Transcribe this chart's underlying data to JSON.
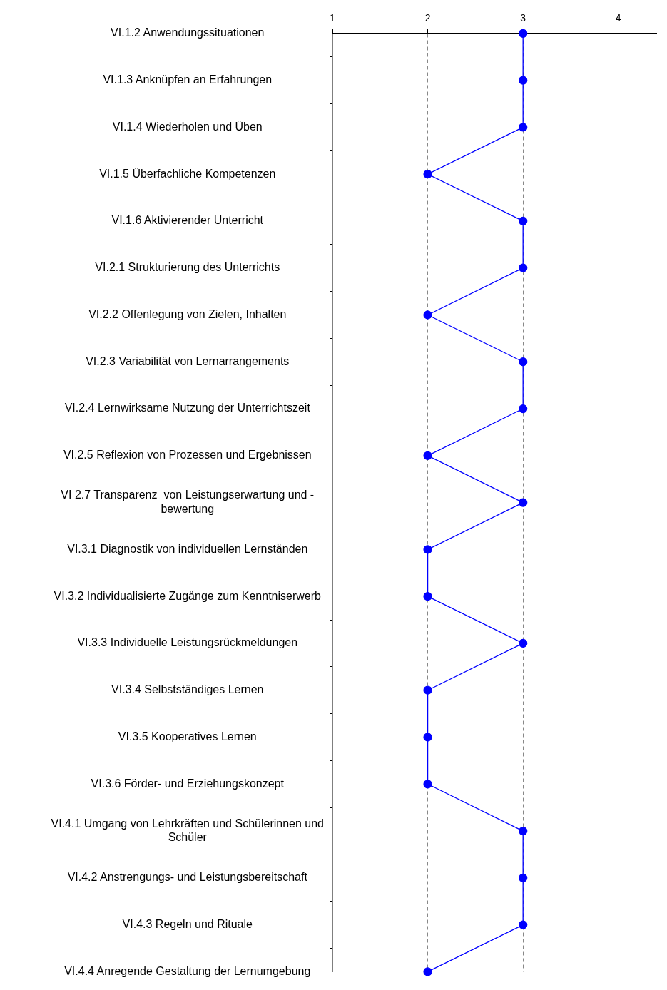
{
  "chart_data": {
    "type": "line",
    "orientation": "horizontal",
    "categories": [
      "VI.1.2 Anwendungssituationen",
      "VI.1.3 Anknüpfen an Erfahrungen",
      "VI.1.4 Wiederholen und Üben",
      "VI.1.5 Überfachliche Kompetenzen",
      "VI.1.6 Aktivierender Unterricht",
      "VI.2.1 Strukturierung des Unterrichts",
      "VI.2.2 Offenlegung von Zielen, Inhalten",
      "VI.2.3 Variabilität von Lernarrangements",
      "VI.2.4 Lernwirksame Nutzung der Unterrichtszeit",
      "VI.2.5 Reflexion von Prozessen und Ergebnissen",
      "VI 2.7 Transparenz  von Leistungserwartung und - bewertung",
      "VI.3.1 Diagnostik von individuellen Lernständen",
      "VI.3.2 Individualisierte Zugänge zum Kenntniserwerb",
      "VI.3.3 Individuelle Leistungsrückmeldungen",
      "VI.3.4 Selbstständiges Lernen",
      "VI.3.5 Kooperatives Lernen",
      "VI.3.6 Förder- und Erziehungskonzept",
      "VI.4.1 Umgang von Lehrkräften und Schülerinnen und Schüler",
      "VI.4.2 Anstrengungs- und Leistungsbereitschaft",
      "VI.4.3 Regeln und Rituale",
      "VI.4.4 Anregende Gestaltung der Lernumgebung"
    ],
    "series": [
      {
        "color": "#0000ff",
        "values": [
          3,
          3,
          3,
          2,
          3,
          3,
          2,
          3,
          3,
          2,
          3,
          2,
          2,
          3,
          2,
          2,
          2,
          3,
          3,
          3,
          2
        ]
      }
    ],
    "xlim": [
      1,
      4.4
    ],
    "xticks": [
      1,
      2,
      3,
      4
    ],
    "grid": "x",
    "legend": false,
    "marker": "circle",
    "line_style": "solid"
  }
}
